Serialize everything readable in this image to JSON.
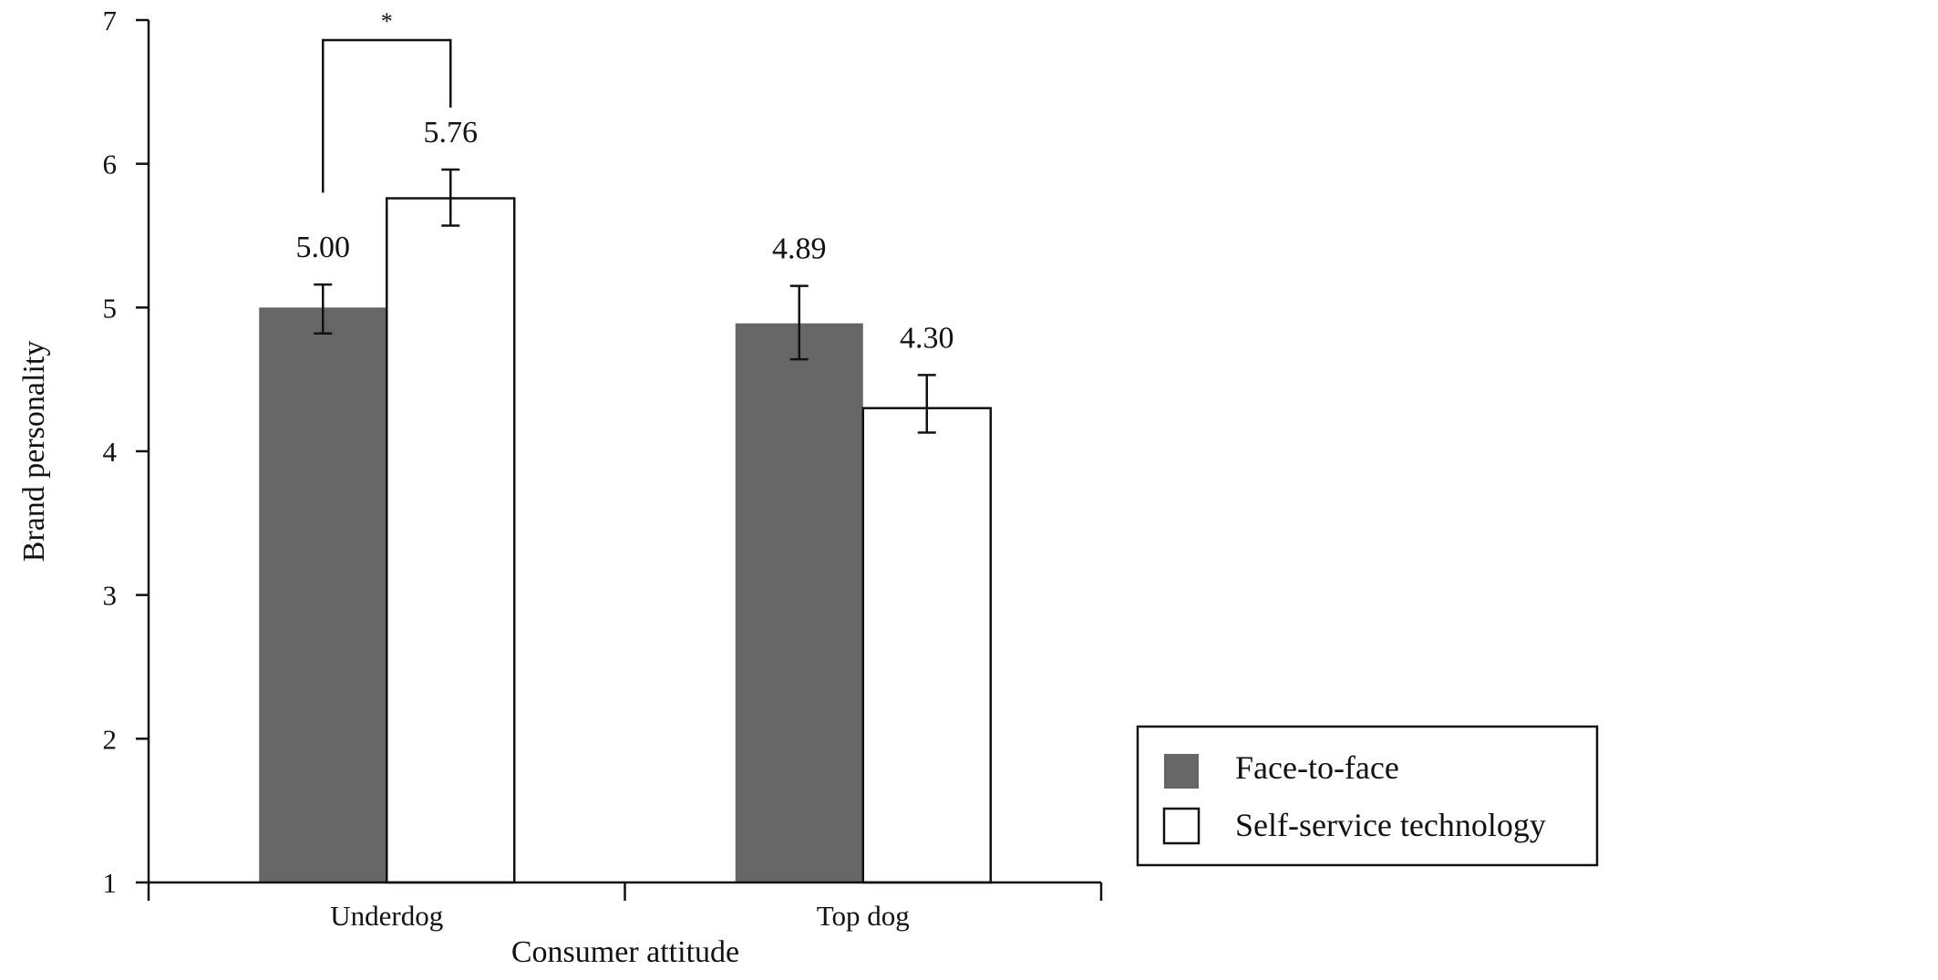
{
  "chart_data": {
    "type": "bar",
    "xlabel": "Consumer attitude",
    "ylabel": "Brand personality",
    "ylim": [
      1,
      7
    ],
    "yticks": [
      "1",
      "2",
      "3",
      "4",
      "5",
      "6",
      "7"
    ],
    "categories": [
      "Underdog",
      "Top dog"
    ],
    "series": [
      {
        "name": "Face-to-face",
        "color": "#666666",
        "values": [
          5.0,
          4.89
        ],
        "labels": [
          "5.00",
          "4.89"
        ],
        "error_low": [
          4.82,
          4.64
        ],
        "error_high": [
          5.16,
          5.15
        ]
      },
      {
        "name": "Self-service technology",
        "color": "#ffffff",
        "values": [
          5.76,
          4.3
        ],
        "labels": [
          "5.76",
          "4.30"
        ],
        "error_low": [
          5.57,
          4.13
        ],
        "error_high": [
          5.96,
          4.53
        ]
      }
    ],
    "significance": [
      {
        "category": "Underdog",
        "mark": "*"
      }
    ],
    "legend_position": "bottom-right",
    "grid": false
  }
}
